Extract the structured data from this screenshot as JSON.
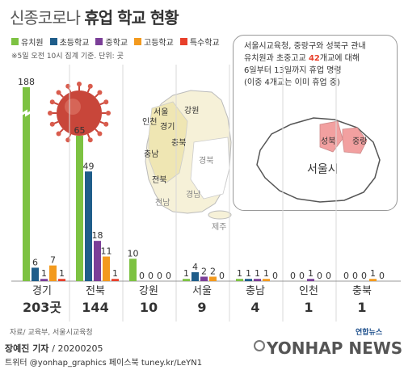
{
  "title": {
    "light": "신종코로나",
    "bold": "휴업 학교 현황"
  },
  "legend": [
    {
      "label": "유치원",
      "color": "#7dc242"
    },
    {
      "label": "초등학교",
      "color": "#1f5d8a"
    },
    {
      "label": "중학교",
      "color": "#7b3f98"
    },
    {
      "label": "고등학교",
      "color": "#f39a1e"
    },
    {
      "label": "특수학교",
      "color": "#e8402b"
    }
  ],
  "note": "※5일 오전 10시 집계 기준. 단위: 곳",
  "info": {
    "line1": "서울시교육청, 중랑구와 성북구 관내",
    "line2_pre": "유치원과 초중고교 ",
    "line2_num": "42",
    "line2_post": "개교에 대해",
    "line3": "6일부터 13일까지 휴업 명령",
    "line4": "(이중 4개교는 이미 휴업 중)"
  },
  "korea_map": {
    "labels": [
      "인천",
      "서울",
      "경기",
      "강원",
      "충북",
      "충남",
      "전북",
      "경북",
      "경남",
      "전남",
      "제주"
    ]
  },
  "seoul_map": {
    "city_label": "서울시",
    "highlight_labels": [
      "성북",
      "중랑"
    ],
    "highlight_color": "#f2a0a0"
  },
  "chart_data": {
    "type": "bar",
    "categories": [
      "경기",
      "전북",
      "강원",
      "서울",
      "충남",
      "인천",
      "충북"
    ],
    "totals": [
      "203곳",
      "144",
      "10",
      "9",
      "4",
      "1",
      "1"
    ],
    "series": [
      {
        "name": "유치원",
        "color": "#7dc242",
        "values": [
          188,
          65,
          10,
          1,
          1,
          0,
          0
        ]
      },
      {
        "name": "초등학교",
        "color": "#1f5d8a",
        "values": [
          6,
          49,
          0,
          4,
          1,
          0,
          0
        ]
      },
      {
        "name": "중학교",
        "color": "#7b3f98",
        "values": [
          1,
          18,
          0,
          2,
          1,
          1,
          0
        ]
      },
      {
        "name": "고등학교",
        "color": "#f39a1e",
        "values": [
          7,
          11,
          0,
          2,
          1,
          0,
          1
        ]
      },
      {
        "name": "특수학교",
        "color": "#e8402b",
        "values": [
          1,
          1,
          0,
          0,
          0,
          0,
          0
        ]
      }
    ],
    "axis_break": {
      "series": "유치원",
      "category": "경기"
    }
  },
  "footer": {
    "source": "자료/ 교육부, 서울시교육청",
    "reporter": "장예진 기자",
    "date": "/ 20200205",
    "social": "트위터 @yonhap_graphics  페이스북 tuney.kr/LeYN1",
    "brand_small": "연합뉴스",
    "brand_big": "YONHAP NEWS"
  }
}
